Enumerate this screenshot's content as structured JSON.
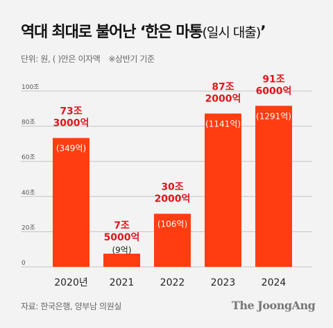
{
  "title": {
    "main": "역대 최대로 불어난 ‘한은 마통",
    "paren": "(일시 대출)",
    "close": "’"
  },
  "subtitle": {
    "units": "단위: 원, ( )안은 이자액",
    "note": "※상반기 기준"
  },
  "colors": {
    "bar": "#ff3d10",
    "value_label": "#e0161c",
    "grid": "#c4c4c4"
  },
  "chart_data": {
    "type": "bar",
    "categories": [
      "2020년",
      "2021",
      "2022",
      "2023",
      "2024"
    ],
    "values": [
      73.3,
      7.5,
      30.2,
      87.2,
      91.6
    ],
    "ylim": [
      0,
      100
    ],
    "y_ticks": [
      0,
      20,
      40,
      60,
      80,
      100
    ],
    "y_tick_labels": [
      "0",
      "20조",
      "40조",
      "60조",
      "80조",
      "100조"
    ],
    "value_labels": [
      [
        "73조",
        "3000억"
      ],
      [
        "7조",
        "5000억"
      ],
      [
        "30조",
        "2000억"
      ],
      [
        "87조",
        "2000억"
      ],
      [
        "91조",
        "6000억"
      ]
    ],
    "interest_labels": [
      "(349억)",
      "(9억)",
      "(106억)",
      "(1141억)",
      "(1291억)"
    ],
    "grid": true
  },
  "footer": {
    "source": "자료: 한국은행, 양부남 의원실",
    "logo": "The JoongAng"
  }
}
